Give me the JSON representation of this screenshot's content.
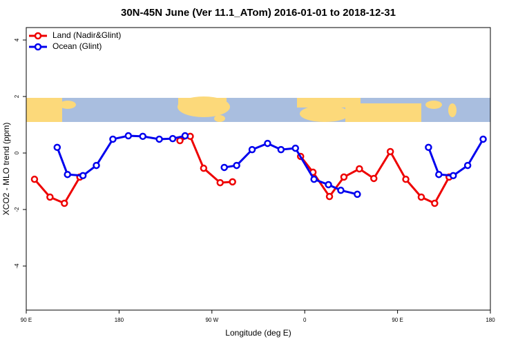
{
  "chart_data": {
    "type": "line",
    "title": "30N-45N June (Ver 11.1_ATom)   2016-01-01 to 2018-12-31",
    "x_label": "Longitude (deg E)",
    "y_label": "XCO2 - MLO trend (ppm)",
    "xlim": [
      90,
      540
    ],
    "xticks": [
      {
        "value": 90,
        "label": "90 E"
      },
      180,
      {
        "value": 270,
        "label": "90 W"
      },
      {
        "value": 360,
        "label": "0"
      },
      {
        "value": 450,
        "label": "90 E"
      },
      {
        "value": 540,
        "label": "180"
      }
    ],
    "ylim": [
      -5.56,
      4.44
    ],
    "yticks": [
      -4,
      -2,
      0,
      2,
      4
    ],
    "legend": "top-left",
    "series": [
      {
        "name": "Land (Nadir&Glint)",
        "color": "#ee0000",
        "x": [
          98,
          113,
          127,
          142,
          190,
          239,
          249,
          262,
          278,
          290,
          320,
          356,
          368,
          384,
          398,
          413,
          427,
          443,
          458,
          473,
          486,
          500
        ],
        "values": [
          -0.93,
          -1.56,
          -1.78,
          -0.85,
          null,
          0.44,
          0.59,
          -0.54,
          -1.05,
          -1.02,
          null,
          -0.12,
          -0.68,
          -1.54,
          -0.85,
          -0.56,
          -0.9,
          0.05,
          -0.93,
          -1.56,
          -1.78,
          -0.85
        ]
      },
      {
        "name": "Ocean (Glint)",
        "color": "#0000ee",
        "x": [
          120,
          130,
          145,
          158,
          174,
          189,
          203,
          219,
          232,
          244,
          262,
          282,
          294,
          309,
          324,
          337,
          351,
          369,
          383,
          395,
          411,
          450,
          480,
          490,
          504,
          518,
          533
        ],
        "values": [
          0.2,
          -0.76,
          -0.8,
          -0.44,
          0.49,
          0.61,
          0.59,
          0.49,
          0.51,
          0.61,
          null,
          -0.51,
          -0.44,
          0.12,
          0.34,
          0.12,
          0.17,
          -0.93,
          -1.12,
          -1.32,
          -1.46,
          null,
          0.2,
          -0.76,
          -0.8,
          -0.44,
          0.49
        ]
      }
    ]
  }
}
